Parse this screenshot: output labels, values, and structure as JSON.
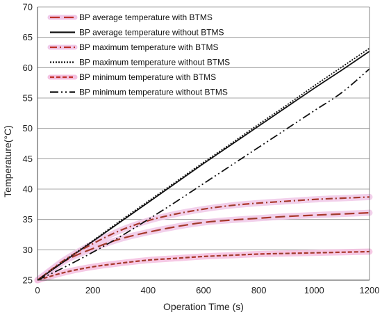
{
  "chart_data": {
    "type": "line",
    "title": "",
    "xlabel": "Operation Time (s)",
    "ylabel": "Temperature(°C)",
    "xlim": [
      0,
      1200
    ],
    "ylim": [
      25,
      70
    ],
    "xticks": [
      "0",
      "200",
      "400",
      "600",
      "800",
      "1000",
      "1200"
    ],
    "yticks": [
      "25",
      "30",
      "35",
      "40",
      "45",
      "50",
      "55",
      "60",
      "65",
      "70"
    ],
    "grid": "horizontal",
    "legend_position": "top-left",
    "x": [
      0,
      100,
      200,
      300,
      400,
      500,
      600,
      700,
      800,
      900,
      1000,
      1100,
      1200
    ],
    "series": [
      {
        "name": "BP average temperature with BTMS",
        "color": "#c0302a",
        "band_color": "#f0c8e8",
        "dash": "long-dash",
        "band": true,
        "values": [
          25.0,
          28.2,
          30.2,
          31.8,
          32.9,
          33.8,
          34.5,
          34.9,
          35.2,
          35.5,
          35.7,
          35.9,
          36.1
        ]
      },
      {
        "name": "BP average temperature without BTMS",
        "color": "#111111",
        "dash": "solid",
        "band": false,
        "values": [
          25.0,
          28.2,
          31.4,
          34.6,
          37.8,
          41.0,
          44.2,
          47.3,
          50.4,
          53.5,
          56.6,
          59.6,
          62.7
        ]
      },
      {
        "name": "BP maximum temperature with BTMS",
        "color": "#c0302a",
        "band_color": "#f0c8e8",
        "dash": "dash-dot",
        "band": true,
        "values": [
          25.0,
          28.4,
          31.0,
          33.2,
          34.8,
          35.9,
          36.7,
          37.3,
          37.7,
          38.0,
          38.3,
          38.5,
          38.7
        ]
      },
      {
        "name": "BP maximum temperature without BTMS",
        "color": "#111111",
        "dash": "dotted",
        "band": false,
        "values": [
          25.0,
          28.3,
          31.5,
          34.8,
          38.0,
          41.2,
          44.4,
          47.5,
          50.7,
          53.8,
          57.0,
          60.1,
          63.2
        ]
      },
      {
        "name": "BP minimum temperature with BTMS",
        "color": "#c0302a",
        "band_color": "#f4c0e0",
        "dash": "short-dash",
        "band": true,
        "values": [
          25.0,
          26.3,
          27.2,
          27.8,
          28.3,
          28.6,
          28.9,
          29.1,
          29.3,
          29.4,
          29.5,
          29.6,
          29.7
        ]
      },
      {
        "name": "BP minimum temperature without BTMS",
        "color": "#111111",
        "dash": "dash-dot-dot",
        "band": false,
        "values": [
          25.0,
          27.2,
          29.6,
          32.2,
          35.0,
          37.9,
          40.9,
          43.9,
          46.9,
          49.9,
          52.9,
          55.9,
          59.8
        ]
      }
    ]
  }
}
